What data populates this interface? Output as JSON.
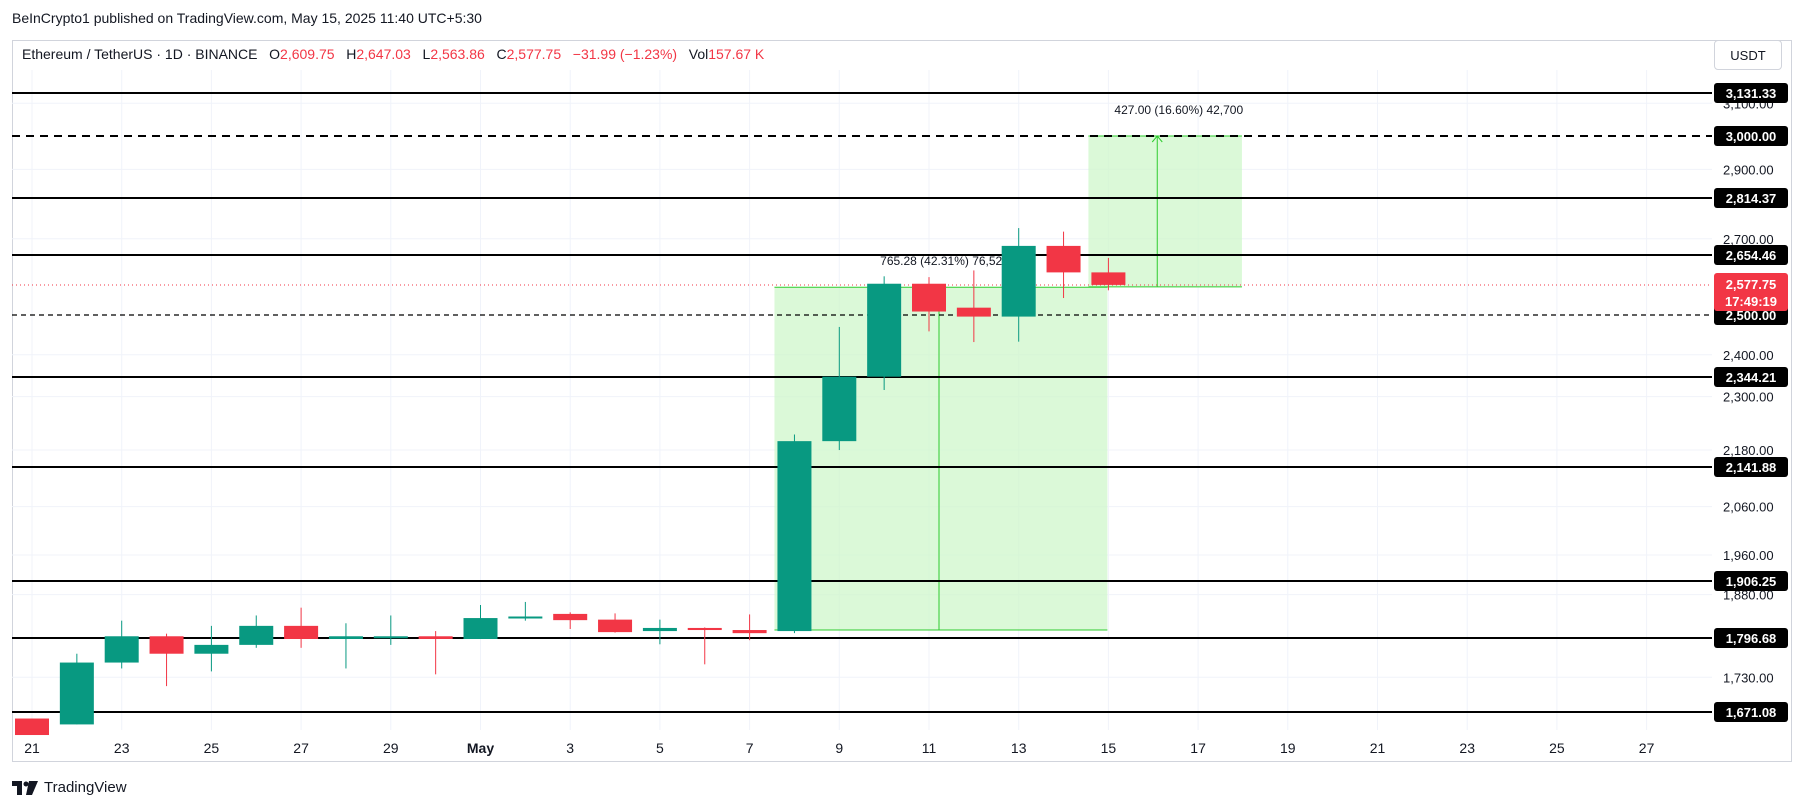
{
  "header": {
    "publisher": "BeInCrypto1 published on TradingView.com, May 15, 2025 11:40 UTC+5:30"
  },
  "legend": {
    "symbol": "Ethereum / TetherUS · 1D · BINANCE",
    "open_label": "O",
    "open": "2,609.75",
    "high_label": "H",
    "high": "2,647.03",
    "low_label": "L",
    "low": "2,563.86",
    "close_label": "C",
    "close": "2,577.75",
    "change": "−31.99 (−1.23%)",
    "vol_label": "Vol",
    "vol": "157.67 K"
  },
  "currency": "USDT",
  "branding": {
    "name": "TradingView"
  },
  "colors": {
    "up": "#089981",
    "down": "#f23645",
    "range_fill": "#ccf7c8",
    "range_line": "#2ecc2e",
    "price_tag": "#f23645"
  },
  "chart_data": {
    "type": "candlestick",
    "x_start": "2025-04-21",
    "x_end": "2025-05-28",
    "y_ticks": [
      1730,
      1880,
      1960,
      2060,
      2180,
      2300,
      2400,
      2700,
      2900,
      3100
    ],
    "y_tick_labels": [
      "1,730.00",
      "1,880.00",
      "1,960.00",
      "2,060.00",
      "2,180.00",
      "2,300.00",
      "2,400.00",
      "2,700.00",
      "2,900.00",
      "3,100.00"
    ],
    "x_ticks": [
      "2025-04-21",
      "2025-04-23",
      "2025-04-25",
      "2025-04-27",
      "2025-04-29",
      "2025-05-01",
      "2025-05-03",
      "2025-05-05",
      "2025-05-07",
      "2025-05-09",
      "2025-05-11",
      "2025-05-13",
      "2025-05-15",
      "2025-05-17",
      "2025-05-19",
      "2025-05-21",
      "2025-05-23",
      "2025-05-25",
      "2025-05-27"
    ],
    "x_tick_labels": [
      "21",
      "23",
      "25",
      "27",
      "29",
      "May",
      "3",
      "5",
      "7",
      "9",
      "11",
      "13",
      "15",
      "17",
      "19",
      "21",
      "23",
      "25",
      "27"
    ],
    "candles": [
      {
        "date": "2025-04-21",
        "o": 1660,
        "h": 1660,
        "l": 1632,
        "c": 1632
      },
      {
        "date": "2025-04-22",
        "o": 1650,
        "h": 1770,
        "l": 1650,
        "c": 1755
      },
      {
        "date": "2025-04-23",
        "o": 1755,
        "h": 1830,
        "l": 1745,
        "c": 1800
      },
      {
        "date": "2025-04-24",
        "o": 1800,
        "h": 1805,
        "l": 1715,
        "c": 1770
      },
      {
        "date": "2025-04-25",
        "o": 1770,
        "h": 1820,
        "l": 1740,
        "c": 1785
      },
      {
        "date": "2025-04-26",
        "o": 1785,
        "h": 1840,
        "l": 1780,
        "c": 1820
      },
      {
        "date": "2025-04-27",
        "o": 1820,
        "h": 1855,
        "l": 1780,
        "c": 1795
      },
      {
        "date": "2025-04-28",
        "o": 1795,
        "h": 1825,
        "l": 1745,
        "c": 1800
      },
      {
        "date": "2025-04-29",
        "o": 1800,
        "h": 1840,
        "l": 1785,
        "c": 1800
      },
      {
        "date": "2025-04-30",
        "o": 1800,
        "h": 1810,
        "l": 1735,
        "c": 1795
      },
      {
        "date": "2025-05-01",
        "o": 1795,
        "h": 1860,
        "l": 1795,
        "c": 1835
      },
      {
        "date": "2025-05-02",
        "o": 1835,
        "h": 1866,
        "l": 1830,
        "c": 1838
      },
      {
        "date": "2025-05-03",
        "o": 1843,
        "h": 1846,
        "l": 1814,
        "c": 1831
      },
      {
        "date": "2025-05-04",
        "o": 1832,
        "h": 1844,
        "l": 1807,
        "c": 1808
      },
      {
        "date": "2025-05-05",
        "o": 1810,
        "h": 1832,
        "l": 1786,
        "c": 1816
      },
      {
        "date": "2025-05-06",
        "o": 1816,
        "h": 1817,
        "l": 1752,
        "c": 1812
      },
      {
        "date": "2025-05-07",
        "o": 1812,
        "h": 1842,
        "l": 1793,
        "c": 1806
      },
      {
        "date": "2025-05-08",
        "o": 1810,
        "h": 2215,
        "l": 1806,
        "c": 2200
      },
      {
        "date": "2025-05-09",
        "o": 2200,
        "h": 2470,
        "l": 2180,
        "c": 2345
      },
      {
        "date": "2025-05-10",
        "o": 2345,
        "h": 2600,
        "l": 2315,
        "c": 2581
      },
      {
        "date": "2025-05-11",
        "o": 2581,
        "h": 2598,
        "l": 2459,
        "c": 2509
      },
      {
        "date": "2025-05-12",
        "o": 2519,
        "h": 2615,
        "l": 2432,
        "c": 2496
      },
      {
        "date": "2025-05-13",
        "o": 2496,
        "h": 2730,
        "l": 2433,
        "c": 2680
      },
      {
        "date": "2025-05-14",
        "o": 2680,
        "h": 2720,
        "l": 2544,
        "c": 2610
      },
      {
        "date": "2025-05-15",
        "o": 2610,
        "h": 2647,
        "l": 2564,
        "c": 2578
      }
    ],
    "horizontal_levels": [
      {
        "value": 3131.33,
        "label": "3,131.33",
        "style": "solid"
      },
      {
        "value": 3000,
        "label": "3,000.00",
        "style": "dashed"
      },
      {
        "value": 2814.37,
        "label": "2,814.37",
        "style": "solid"
      },
      {
        "value": 2654.46,
        "label": "2,654.46",
        "style": "solid"
      },
      {
        "value": 2500,
        "label": "2,500.00",
        "style": "dashed"
      },
      {
        "value": 2344.21,
        "label": "2,344.21",
        "style": "solid"
      },
      {
        "value": 2141.88,
        "label": "2,141.88",
        "style": "solid"
      },
      {
        "value": 1906.25,
        "label": "1,906.25",
        "style": "solid"
      },
      {
        "value": 1796.68,
        "label": "1,796.68",
        "style": "solid"
      },
      {
        "value": 1671.08,
        "label": "1,671.08",
        "style": "solid"
      }
    ],
    "current_price": {
      "value": 2577.75,
      "label": "2,577.75",
      "countdown": "17:49:19"
    },
    "ranges": [
      {
        "x_from": "2025-05-08",
        "x_to": "2025-05-15",
        "y_from": 1812,
        "y_to": 2572,
        "arrow_date": "2025-05-11",
        "label": "765.28 (42.31%) 76,528",
        "label_date": "2025-05-10"
      },
      {
        "x_from": "2025-05-15",
        "x_to": "2025-05-18",
        "y_from": 2573,
        "y_to": 3000,
        "arrow_date": "2025-05-16",
        "label": "427.00 (16.60%) 42,700",
        "label_date": "2025-05-15"
      }
    ]
  }
}
